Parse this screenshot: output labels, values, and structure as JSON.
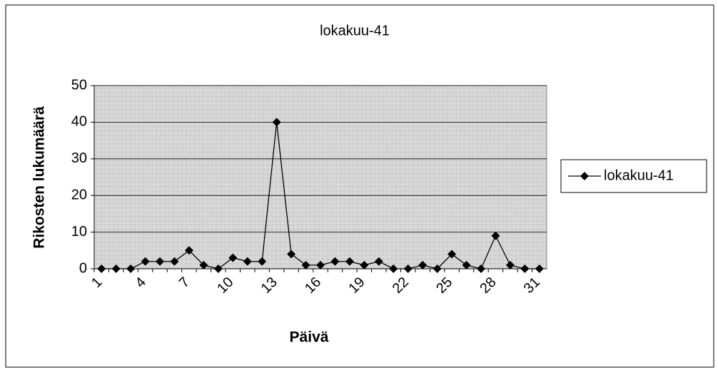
{
  "chart_data": {
    "type": "line",
    "title": "lokakuu-41",
    "x_label": "Päivä",
    "y_label": "Rikosten lukumäärä",
    "categories": [
      "1",
      null,
      null,
      "4",
      null,
      null,
      "7",
      null,
      null,
      "10",
      null,
      null,
      "13",
      null,
      null,
      "16",
      null,
      null,
      "19",
      null,
      null,
      "22",
      null,
      null,
      "25",
      null,
      null,
      "28",
      null,
      null,
      "31"
    ],
    "series": [
      {
        "name": "lokakuu-41",
        "color": "#000000",
        "values": [
          0,
          0,
          0,
          2,
          2,
          2,
          5,
          1,
          0,
          3,
          2,
          2,
          40,
          4,
          1,
          1,
          2,
          2,
          1,
          2,
          0,
          0,
          1,
          0,
          4,
          1,
          0,
          9,
          1,
          0,
          0
        ]
      }
    ],
    "ylim": [
      0,
      50
    ],
    "yticks": [
      0,
      10,
      20,
      30,
      40,
      50
    ],
    "grid": true,
    "legend": "right"
  }
}
